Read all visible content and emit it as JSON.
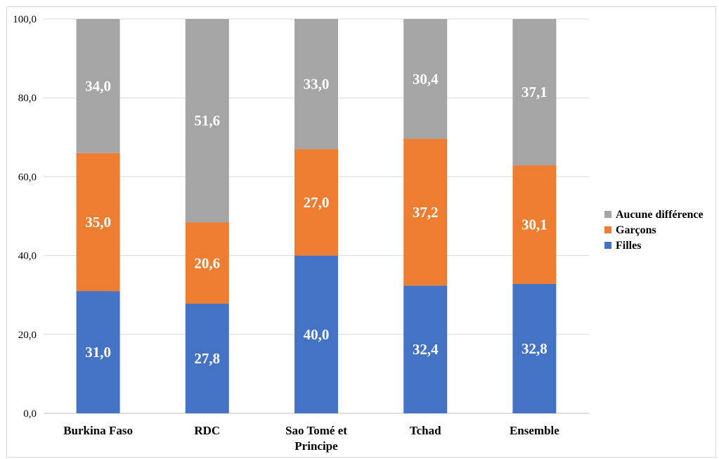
{
  "chart_data": {
    "type": "bar",
    "stacked": true,
    "categories": [
      [
        "Burkina Faso"
      ],
      [
        "RDC"
      ],
      [
        "Sao Tomé et",
        "Principe"
      ],
      [
        "Tchad"
      ],
      [
        "Ensemble"
      ]
    ],
    "series": [
      {
        "name": "Filles",
        "color": "#4472c4",
        "values": [
          31.0,
          27.8,
          40.0,
          32.4,
          32.8
        ],
        "labels": [
          "31,0",
          "27,8",
          "40,0",
          "32,4",
          "32,8"
        ]
      },
      {
        "name": "Garçons",
        "color": "#ed7d31",
        "values": [
          35.0,
          20.6,
          27.0,
          37.2,
          30.1
        ],
        "labels": [
          "35,0",
          "20,6",
          "27,0",
          "37,2",
          "30,1"
        ]
      },
      {
        "name": "Aucune différence",
        "color": "#a5a5a5",
        "values": [
          34.0,
          51.6,
          33.0,
          30.4,
          37.1
        ],
        "labels": [
          "34,0",
          "51,6",
          "33,0",
          "30,4",
          "37,1"
        ]
      }
    ],
    "ylim": [
      0,
      100
    ],
    "yticks": [
      "0,0",
      "20,0",
      "40,0",
      "60,0",
      "80,0",
      "100,0"
    ],
    "grid": true,
    "legend_position": "right",
    "legend_order": [
      "Aucune différence",
      "Garçons",
      "Filles"
    ],
    "title": "",
    "xlabel": "",
    "ylabel": ""
  }
}
